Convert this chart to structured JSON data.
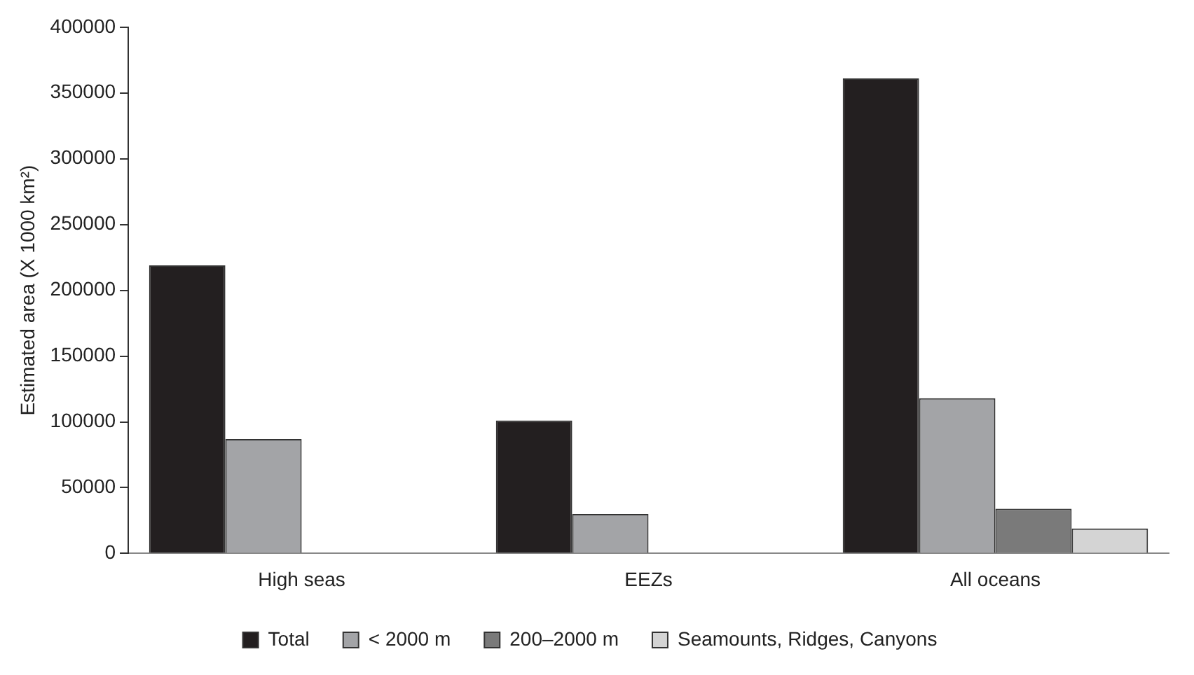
{
  "chart_data": {
    "type": "bar",
    "ylabel": "Estimated area (X 1000 km²)",
    "categories": [
      "High seas",
      "EEZs",
      "All oceans"
    ],
    "series": [
      {
        "name": "Total",
        "color": "#231f20",
        "values": [
          219000,
          101000,
          361000
        ]
      },
      {
        "name": "< 2000 m",
        "color": "#a3a4a7",
        "values": [
          87000,
          30000,
          118000
        ]
      },
      {
        "name": "200–2000 m",
        "color": "#7a7a7a",
        "values": [
          0,
          0,
          34000
        ]
      },
      {
        "name": "Seamounts, Ridges, Canyons",
        "color": "#d4d4d4",
        "values": [
          0,
          0,
          19000
        ]
      }
    ],
    "ylim": [
      0,
      400000
    ],
    "yticks": [
      0,
      50000,
      100000,
      150000,
      200000,
      250000,
      300000,
      350000,
      400000
    ],
    "legend": "bottom"
  }
}
